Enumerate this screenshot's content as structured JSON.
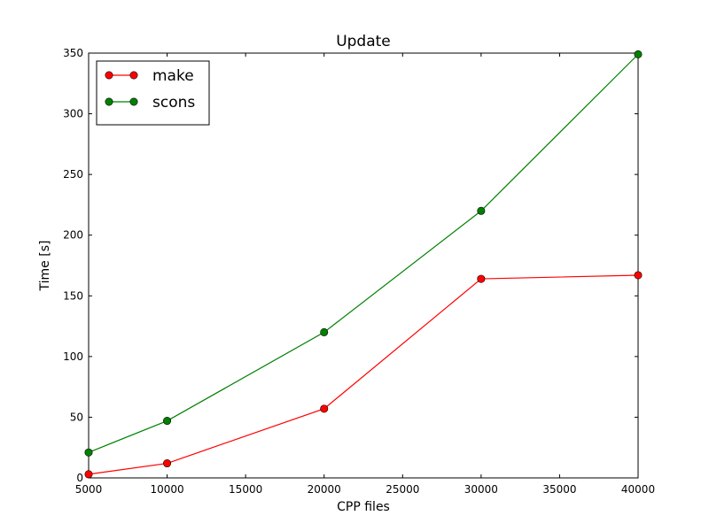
{
  "chart_data": {
    "type": "line",
    "title": "Update",
    "xlabel": "CPP files",
    "ylabel": "Time [s]",
    "xlim": [
      5000,
      40000
    ],
    "ylim": [
      0,
      350
    ],
    "xticks": [
      5000,
      10000,
      15000,
      20000,
      25000,
      30000,
      35000,
      40000
    ],
    "yticks": [
      0,
      50,
      100,
      150,
      200,
      250,
      300,
      350
    ],
    "grid": false,
    "legend_position": "top-left",
    "x": [
      5000,
      10000,
      20000,
      30000,
      40000
    ],
    "series": [
      {
        "name": "make",
        "color": "#ff0000",
        "values": [
          3,
          12,
          57,
          164,
          167
        ]
      },
      {
        "name": "scons",
        "color": "#008000",
        "values": [
          21,
          47,
          120,
          220,
          349
        ]
      }
    ]
  }
}
